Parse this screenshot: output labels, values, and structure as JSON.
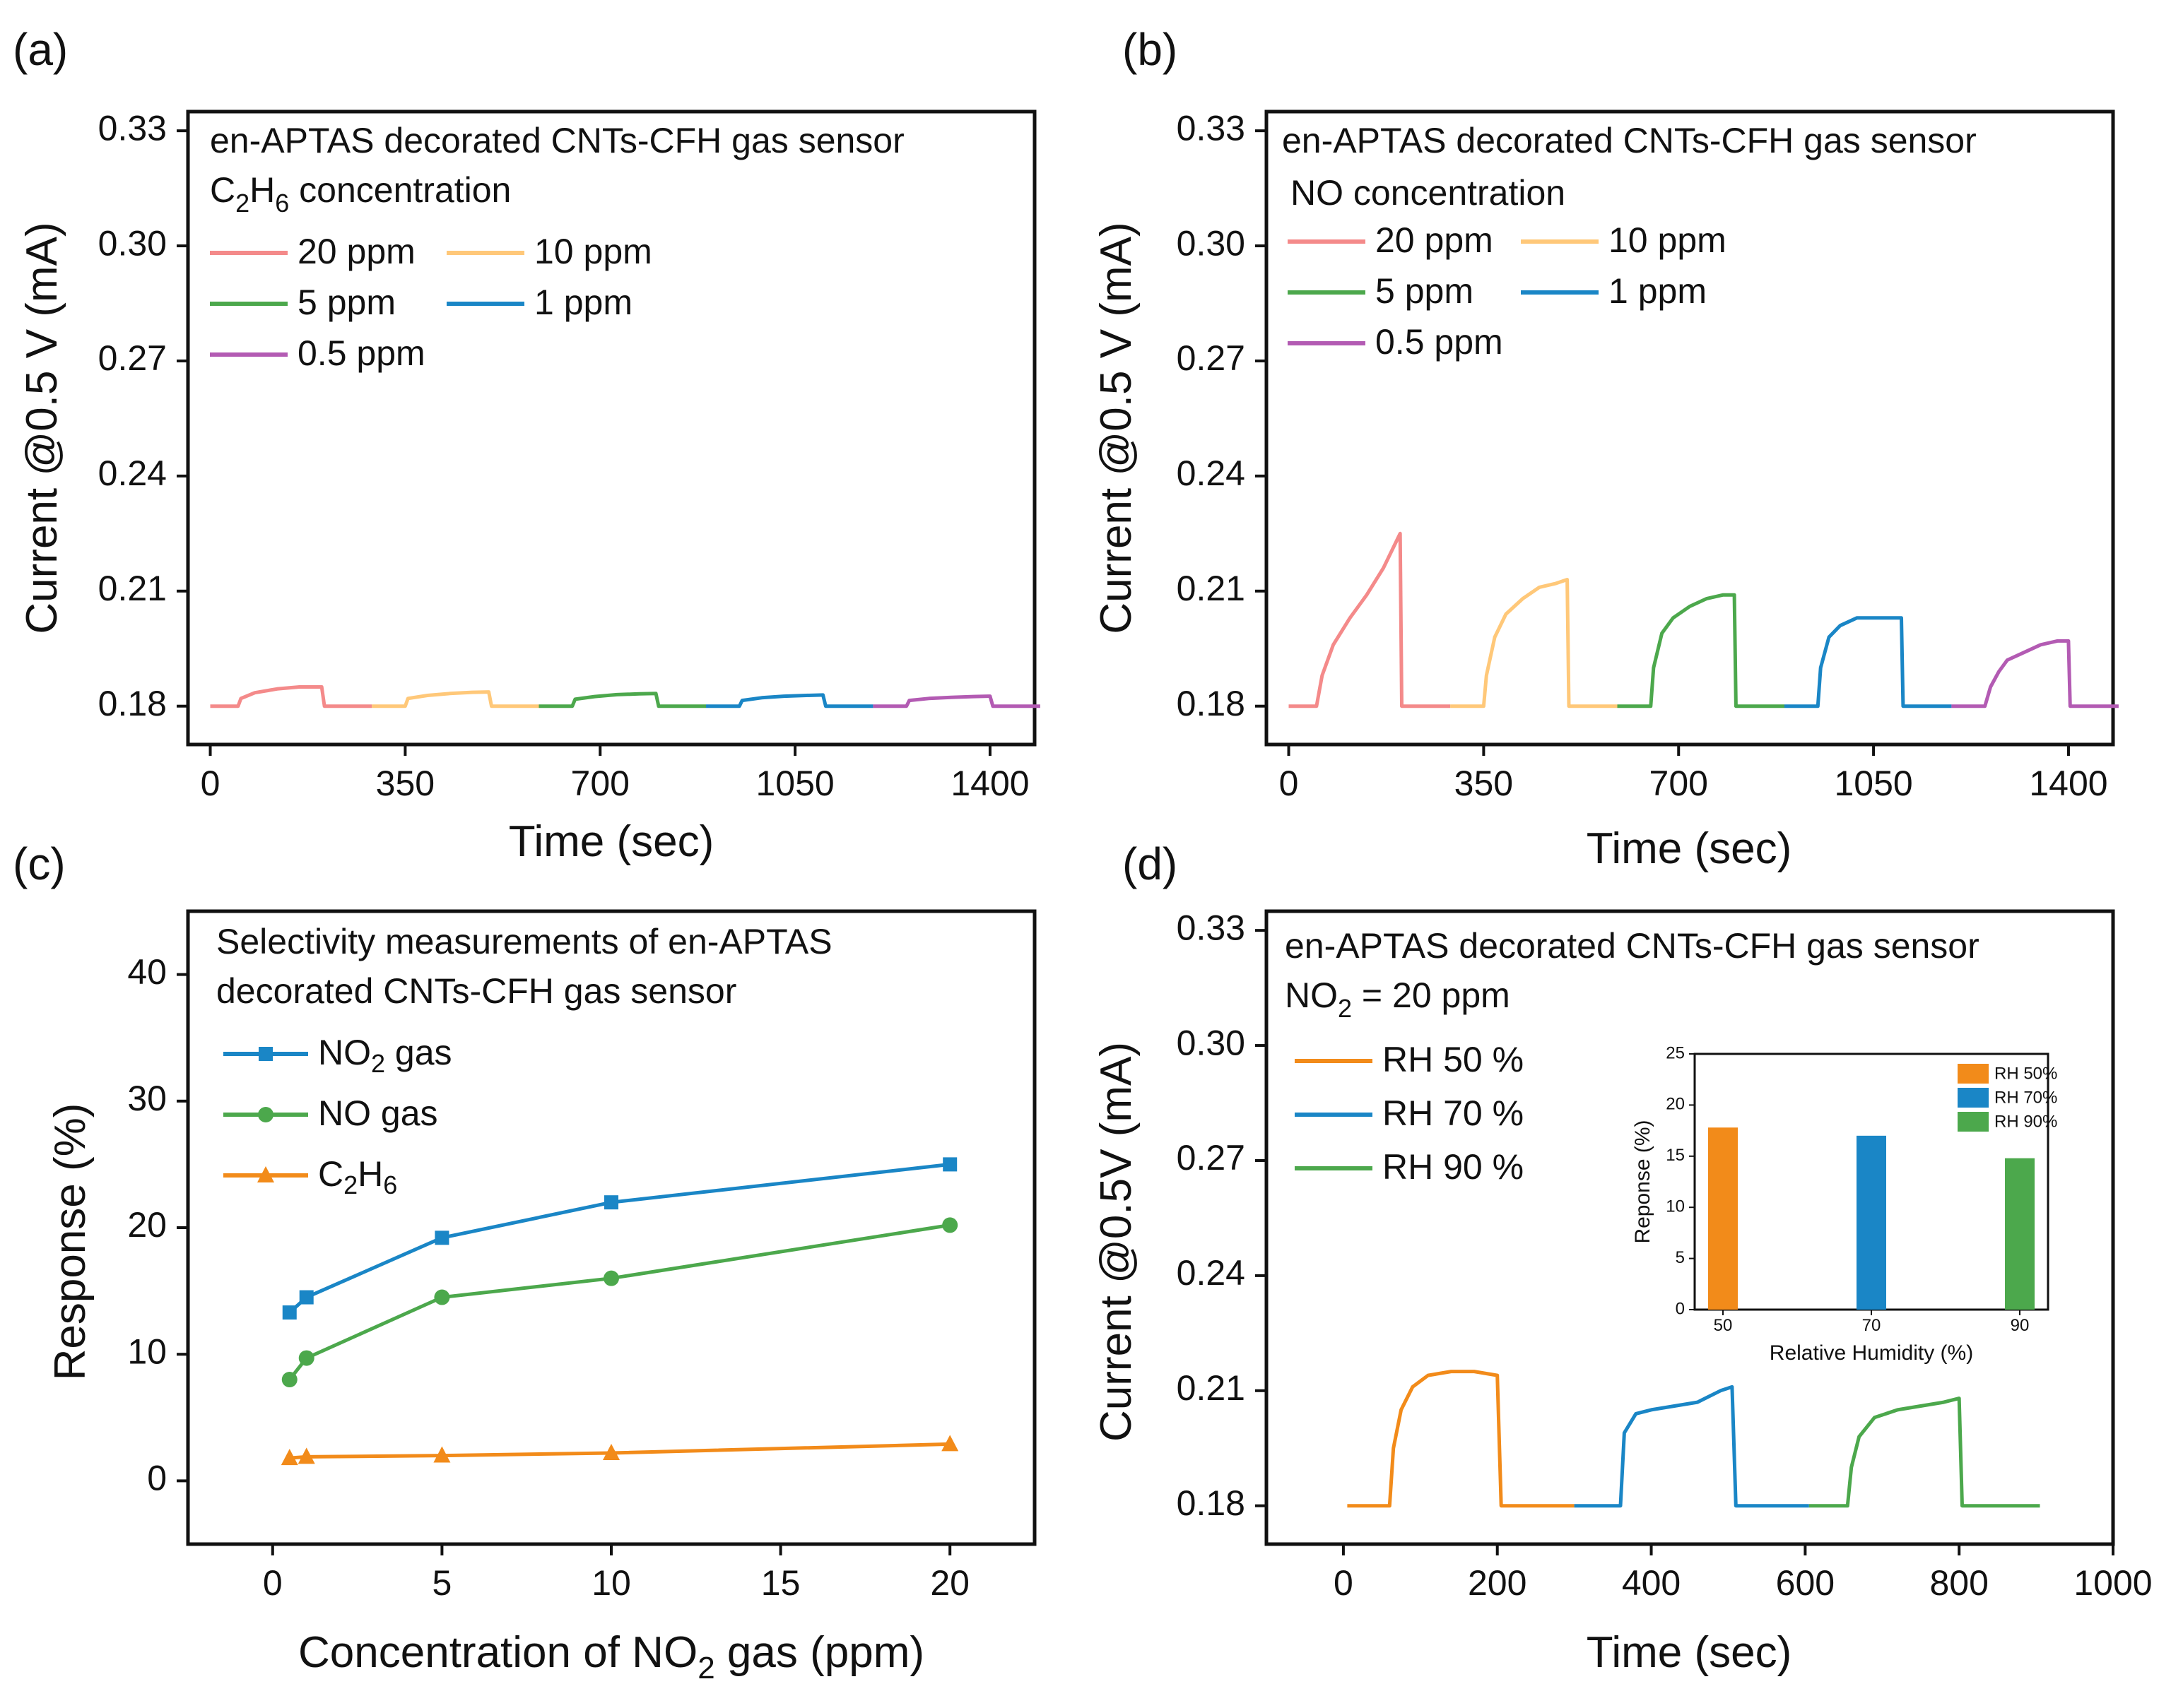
{
  "chart_data": [
    {
      "panel": "(a)",
      "type": "line",
      "title": "en-APTAS decorated CNTs-CFH gas sensor",
      "subtitle": "C2H6 concentration",
      "xlabel": "Time (sec)",
      "ylabel": "Current @0.5 V (mA)",
      "xlim": [
        -40,
        1480
      ],
      "ylim": [
        0.17,
        0.335
      ],
      "xticks": [
        0,
        350,
        700,
        1050,
        1400
      ],
      "yticks": [
        0.18,
        0.21,
        0.24,
        0.27,
        0.3,
        0.33
      ],
      "legend_placement": "top-left",
      "series": [
        {
          "name": "20 ppm",
          "color": "#f48a8a",
          "x": [
            0,
            50,
            55,
            80,
            120,
            160,
            200,
            205,
            210,
            290
          ],
          "y": [
            0.18,
            0.18,
            0.182,
            0.1835,
            0.1845,
            0.185,
            0.185,
            0.18,
            0.18,
            0.18
          ]
        },
        {
          "name": "10 ppm",
          "color": "#ffc879",
          "x": [
            290,
            350,
            355,
            390,
            430,
            470,
            500,
            505,
            510,
            590
          ],
          "y": [
            0.18,
            0.18,
            0.182,
            0.1828,
            0.1833,
            0.1836,
            0.1837,
            0.18,
            0.18,
            0.18
          ]
        },
        {
          "name": "5 ppm",
          "color": "#4ca84c",
          "x": [
            590,
            650,
            655,
            690,
            730,
            770,
            800,
            805,
            810,
            890
          ],
          "y": [
            0.18,
            0.18,
            0.1818,
            0.1825,
            0.183,
            0.1832,
            0.1833,
            0.18,
            0.18,
            0.18
          ]
        },
        {
          "name": "1 ppm",
          "color": "#1a86c6",
          "x": [
            890,
            950,
            955,
            990,
            1030,
            1070,
            1100,
            1105,
            1110,
            1190
          ],
          "y": [
            0.18,
            0.18,
            0.1815,
            0.1822,
            0.1826,
            0.1828,
            0.1829,
            0.18,
            0.18,
            0.18
          ]
        },
        {
          "name": "0.5 ppm",
          "color": "#b35bb3",
          "x": [
            1190,
            1250,
            1255,
            1290,
            1330,
            1370,
            1400,
            1405,
            1410,
            1490
          ],
          "y": [
            0.18,
            0.18,
            0.1815,
            0.182,
            0.1823,
            0.1825,
            0.1826,
            0.18,
            0.18,
            0.18
          ]
        }
      ]
    },
    {
      "panel": "(b)",
      "type": "line",
      "title": "en-APTAS decorated CNTs-CFH gas sensor",
      "subtitle": "NO concentration",
      "xlabel": "Time (sec)",
      "ylabel": "Current @0.5 V (mA)",
      "xlim": [
        -40,
        1480
      ],
      "ylim": [
        0.17,
        0.335
      ],
      "xticks": [
        0,
        350,
        700,
        1050,
        1400
      ],
      "yticks": [
        0.18,
        0.21,
        0.24,
        0.27,
        0.3,
        0.33
      ],
      "legend_placement": "top-left",
      "series": [
        {
          "name": "20 ppm",
          "color": "#f48a8a",
          "x": [
            0,
            50,
            60,
            80,
            110,
            140,
            170,
            200,
            203,
            210,
            290
          ],
          "y": [
            0.18,
            0.18,
            0.188,
            0.196,
            0.203,
            0.209,
            0.216,
            0.225,
            0.18,
            0.18,
            0.18
          ]
        },
        {
          "name": "10 ppm",
          "color": "#ffc879",
          "x": [
            290,
            350,
            355,
            370,
            390,
            420,
            450,
            480,
            500,
            503,
            510,
            590
          ],
          "y": [
            0.18,
            0.18,
            0.188,
            0.198,
            0.204,
            0.208,
            0.211,
            0.212,
            0.213,
            0.18,
            0.18,
            0.18
          ]
        },
        {
          "name": "5 ppm",
          "color": "#4ca84c",
          "x": [
            590,
            650,
            655,
            670,
            690,
            720,
            750,
            780,
            800,
            803,
            810,
            890
          ],
          "y": [
            0.18,
            0.18,
            0.19,
            0.199,
            0.203,
            0.206,
            0.208,
            0.209,
            0.209,
            0.18,
            0.18,
            0.18
          ]
        },
        {
          "name": "1 ppm",
          "color": "#1a86c6",
          "x": [
            890,
            950,
            955,
            970,
            990,
            1020,
            1050,
            1080,
            1100,
            1103,
            1110,
            1190
          ],
          "y": [
            0.18,
            0.18,
            0.19,
            0.198,
            0.201,
            0.203,
            0.203,
            0.203,
            0.203,
            0.18,
            0.18,
            0.18
          ]
        },
        {
          "name": "0.5 ppm",
          "color": "#b35bb3",
          "x": [
            1190,
            1250,
            1260,
            1275,
            1290,
            1320,
            1350,
            1380,
            1400,
            1403,
            1410,
            1490
          ],
          "y": [
            0.18,
            0.18,
            0.185,
            0.189,
            0.192,
            0.194,
            0.196,
            0.197,
            0.197,
            0.18,
            0.18,
            0.18
          ]
        }
      ]
    },
    {
      "panel": "(c)",
      "type": "line",
      "title": "Selectivity measurements of en-APTAS",
      "subtitle": "decorated CNTs-CFH gas sensor",
      "xlabel": "Concentration of NO2 gas (ppm)",
      "ylabel": "Response (%)",
      "xlim": [
        -2.5,
        22.5
      ],
      "ylim": [
        -5,
        45
      ],
      "xticks": [
        0,
        5,
        10,
        15,
        20
      ],
      "yticks": [
        0,
        10,
        20,
        30,
        40
      ],
      "legend_placement": "top-left",
      "series": [
        {
          "name": "NO2 gas",
          "color": "#1a86c6",
          "marker": "square",
          "x": [
            0.5,
            1,
            5,
            10,
            20
          ],
          "y": [
            13.3,
            14.5,
            19.2,
            22.0,
            25.0
          ]
        },
        {
          "name": "NO gas",
          "color": "#4ca84c",
          "marker": "circle",
          "x": [
            0.5,
            1,
            5,
            10,
            20
          ],
          "y": [
            8.0,
            9.7,
            14.5,
            16.0,
            20.2
          ]
        },
        {
          "name": "C2H6",
          "color": "#f28b1a",
          "marker": "triangle",
          "x": [
            0.5,
            1,
            5,
            10,
            20
          ],
          "y": [
            1.8,
            1.9,
            2.0,
            2.2,
            2.9
          ]
        }
      ]
    },
    {
      "panel": "(d)",
      "type": "line",
      "title": "en-APTAS decorated CNTs-CFH gas sensor",
      "subtitle": "NO2 = 20 ppm",
      "xlabel": "Time (sec)",
      "ylabel": "Current @0.5V (mA)",
      "xlim": [
        -100,
        1000
      ],
      "ylim": [
        0.17,
        0.335
      ],
      "xticks": [
        0,
        200,
        400,
        600,
        800,
        1000
      ],
      "yticks": [
        0.18,
        0.21,
        0.24,
        0.27,
        0.3,
        0.33
      ],
      "legend_placement": "left",
      "series": [
        {
          "name": "RH 50 %",
          "color": "#f28b1a",
          "x": [
            5,
            60,
            65,
            75,
            90,
            110,
            140,
            170,
            200,
            205,
            210,
            300
          ],
          "y": [
            0.18,
            0.18,
            0.195,
            0.205,
            0.211,
            0.214,
            0.215,
            0.215,
            0.214,
            0.18,
            0.18,
            0.18
          ]
        },
        {
          "name": "RH 70 %",
          "color": "#1a86c6",
          "x": [
            300,
            360,
            365,
            380,
            400,
            430,
            460,
            490,
            505,
            510,
            515,
            605
          ],
          "y": [
            0.18,
            0.18,
            0.199,
            0.204,
            0.205,
            0.206,
            0.207,
            0.21,
            0.211,
            0.18,
            0.18,
            0.18
          ]
        },
        {
          "name": "RH 90 %",
          "color": "#4ca84c",
          "x": [
            605,
            655,
            660,
            670,
            690,
            720,
            750,
            780,
            800,
            804,
            810,
            905
          ],
          "y": [
            0.18,
            0.18,
            0.19,
            0.198,
            0.203,
            0.205,
            0.206,
            0.207,
            0.208,
            0.18,
            0.18,
            0.18
          ]
        }
      ],
      "inset": {
        "type": "bar",
        "xlabel": "Relative Humidity (%)",
        "ylabel": "Reponse (%)",
        "categories": [
          "50",
          "70",
          "90"
        ],
        "values": [
          17.8,
          17.0,
          14.8
        ],
        "colors": [
          "#f28b1a",
          "#1a86c6",
          "#4ca84c"
        ],
        "legend": [
          "RH 50%",
          "RH 70%",
          "RH 90%"
        ],
        "ylim": [
          0,
          25
        ],
        "yticks": [
          0,
          5,
          10,
          15,
          20,
          25
        ]
      }
    }
  ]
}
